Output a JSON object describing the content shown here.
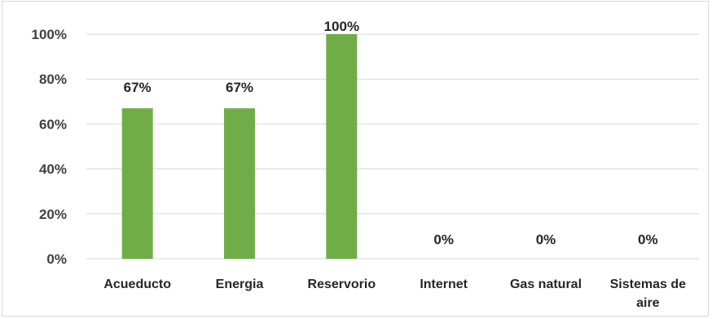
{
  "chart_data": {
    "type": "bar",
    "categories": [
      "Acueducto",
      "Energia",
      "Reservorio",
      "Internet",
      "Gas natural",
      "Sistemas de aire"
    ],
    "values": [
      67,
      67,
      100,
      0,
      0,
      0
    ],
    "data_labels": [
      "67%",
      "67%",
      "100%",
      "0%",
      "0%",
      "0%"
    ],
    "y_ticks": [
      "0%",
      "20%",
      "40%",
      "60%",
      "80%",
      "100%"
    ],
    "ylim": [
      0,
      100
    ],
    "title": "",
    "xlabel": "",
    "ylabel": "",
    "grid": true,
    "legend": "none",
    "bar_color": "#70ad47",
    "grid_color": "#d9d9d9"
  }
}
